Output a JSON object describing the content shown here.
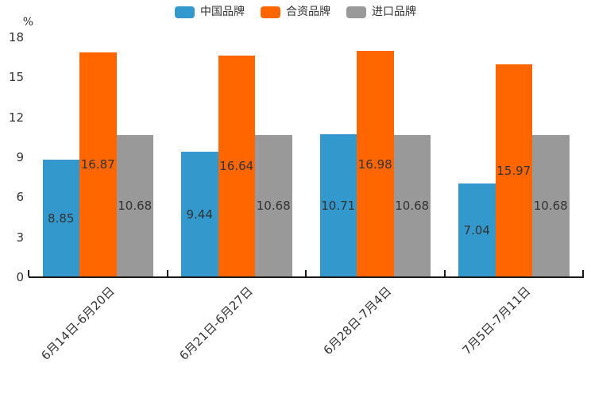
{
  "chart_data": {
    "type": "bar",
    "title": "",
    "categories": [
      "6月14日-6月20日",
      "6月21日-6月27日",
      "6月28日-7月4日",
      "7月5日-7月11日"
    ],
    "series": [
      {
        "name": "中国品牌",
        "color": "#3398CC",
        "values": [
          8.85,
          9.44,
          10.71,
          7.04
        ]
      },
      {
        "name": "合资品牌",
        "color": "#FF6600",
        "values": [
          16.87,
          16.64,
          16.98,
          15.97
        ]
      },
      {
        "name": "进口品牌",
        "color": "#999999",
        "values": [
          10.68,
          10.68,
          10.68,
          10.68
        ]
      }
    ],
    "xlabel": "",
    "ylabel": "%",
    "ylim": [
      0,
      18
    ],
    "yticks": [
      0,
      3,
      6,
      9,
      12,
      15,
      18
    ],
    "grid": false,
    "legend_position": "top",
    "value_labels": "centered-inside-bars",
    "colors": {
      "axis": "#1a1a1a",
      "text": "#333333",
      "background": "#ffffff"
    }
  }
}
